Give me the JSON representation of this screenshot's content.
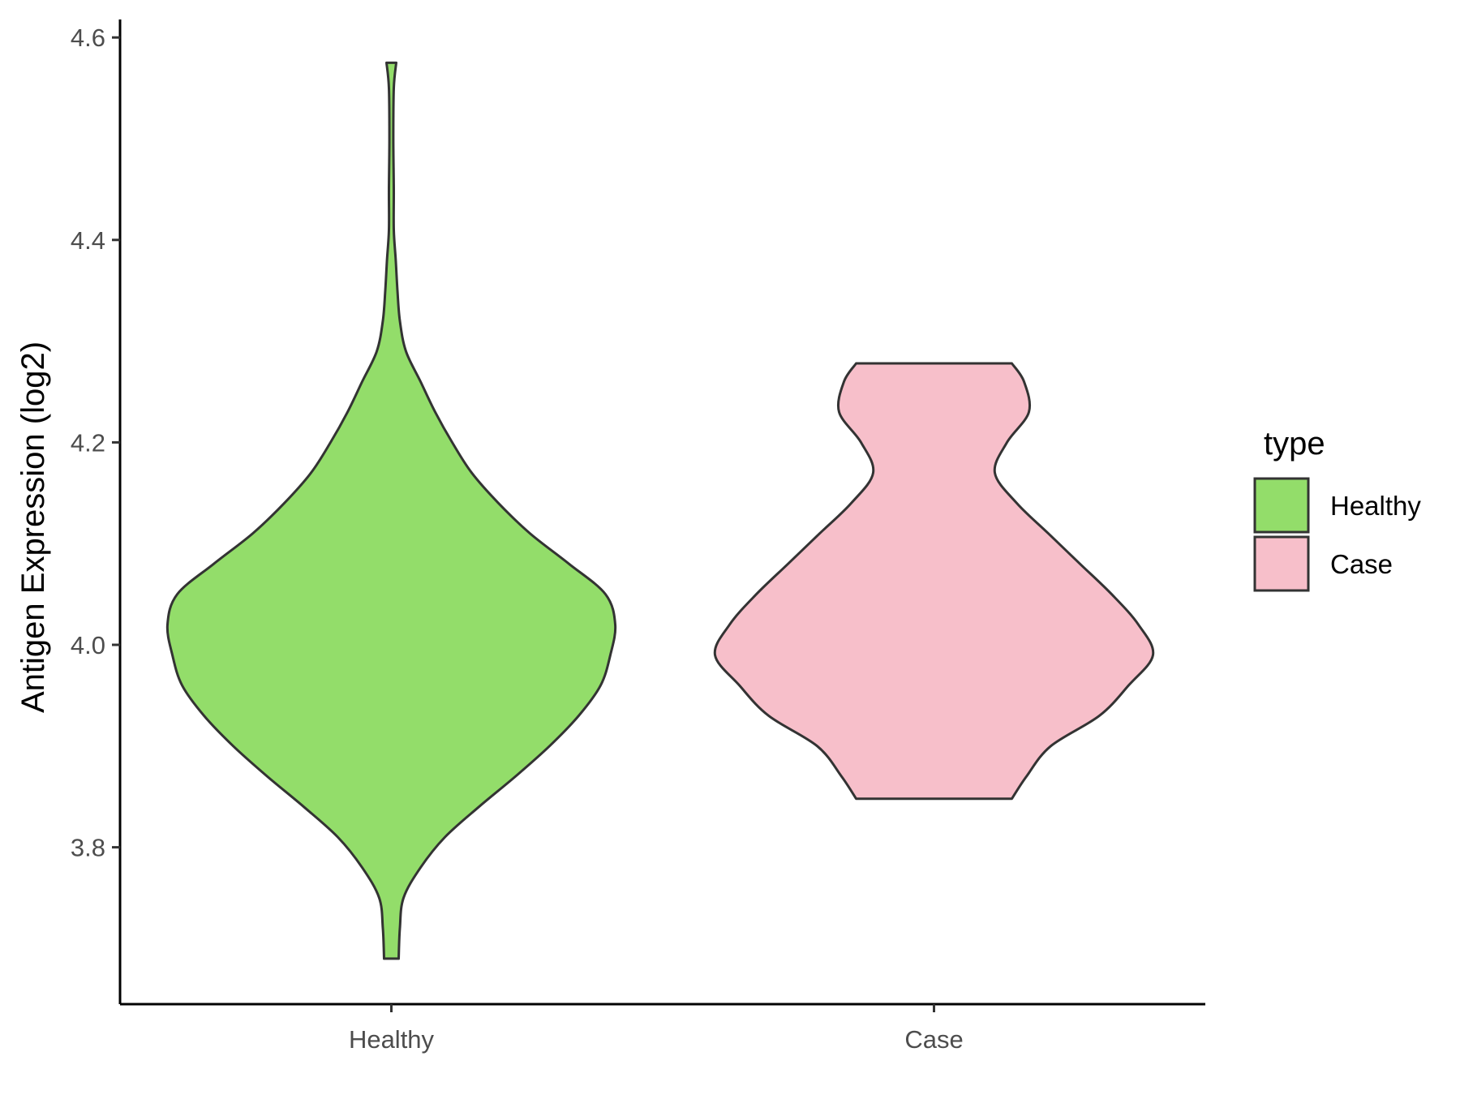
{
  "chart_data": {
    "type": "violin",
    "categories": [
      "Healthy",
      "Case"
    ],
    "ylabel": "Antigen Expression (log2)",
    "xlabel": "",
    "ylim": [
      3.65,
      4.62
    ],
    "yticks": [
      "3.8",
      "4.0",
      "4.2",
      "4.4",
      "4.6"
    ],
    "ytick_values": [
      3.8,
      4.0,
      4.2,
      4.4,
      4.6
    ],
    "grid": false,
    "legend": {
      "title": "type",
      "placement": "right",
      "entries": [
        {
          "label": "Healthy",
          "color": "#93dd6a"
        },
        {
          "label": "Case",
          "color": "#f7bfca"
        }
      ]
    },
    "outline_color": "#333333",
    "series": [
      {
        "name": "Healthy",
        "color": "#93dd6a",
        "min": 3.69,
        "max": 4.575,
        "density_profile": [
          [
            3.69,
            0.03
          ],
          [
            3.72,
            0.035
          ],
          [
            3.75,
            0.05
          ],
          [
            3.78,
            0.12
          ],
          [
            3.81,
            0.22
          ],
          [
            3.84,
            0.36
          ],
          [
            3.87,
            0.51
          ],
          [
            3.9,
            0.65
          ],
          [
            3.93,
            0.77
          ],
          [
            3.96,
            0.86
          ],
          [
            3.99,
            0.9
          ],
          [
            4.02,
            0.92
          ],
          [
            4.05,
            0.88
          ],
          [
            4.08,
            0.73
          ],
          [
            4.11,
            0.57
          ],
          [
            4.14,
            0.44
          ],
          [
            4.17,
            0.33
          ],
          [
            4.2,
            0.25
          ],
          [
            4.23,
            0.18
          ],
          [
            4.26,
            0.12
          ],
          [
            4.29,
            0.06
          ],
          [
            4.32,
            0.035
          ],
          [
            4.35,
            0.025
          ],
          [
            4.38,
            0.018
          ],
          [
            4.41,
            0.01
          ],
          [
            4.45,
            0.01
          ],
          [
            4.5,
            0.008
          ],
          [
            4.55,
            0.01
          ],
          [
            4.575,
            0.02
          ]
        ]
      },
      {
        "name": "Case",
        "color": "#f7bfca",
        "min": 3.848,
        "max": 4.278,
        "density_profile": [
          [
            3.848,
            0.32
          ],
          [
            3.87,
            0.38
          ],
          [
            3.9,
            0.48
          ],
          [
            3.93,
            0.68
          ],
          [
            3.96,
            0.8
          ],
          [
            3.99,
            0.9
          ],
          [
            4.02,
            0.84
          ],
          [
            4.05,
            0.73
          ],
          [
            4.08,
            0.6
          ],
          [
            4.11,
            0.47
          ],
          [
            4.14,
            0.34
          ],
          [
            4.17,
            0.25
          ],
          [
            4.2,
            0.3
          ],
          [
            4.23,
            0.39
          ],
          [
            4.26,
            0.37
          ],
          [
            4.278,
            0.32
          ]
        ]
      }
    ]
  }
}
